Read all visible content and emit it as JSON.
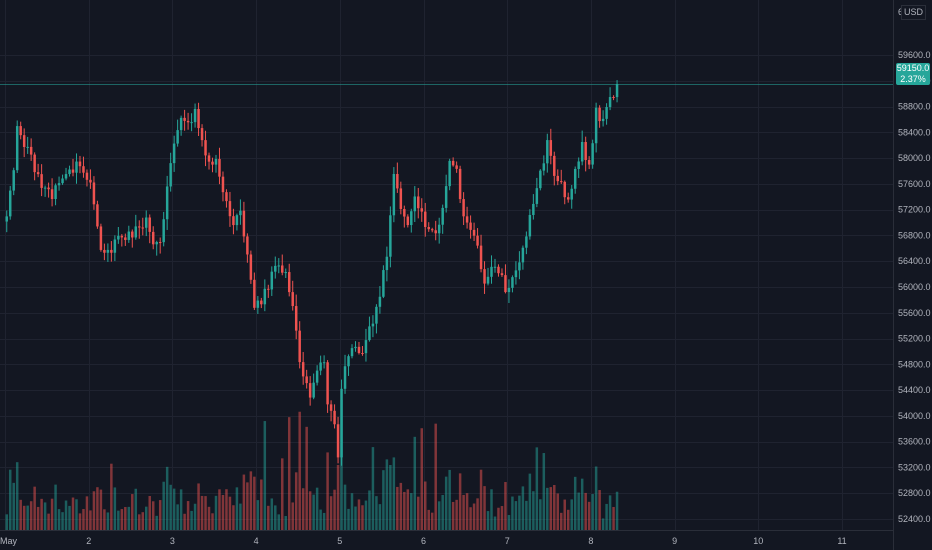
{
  "currency": "USD",
  "price_label": {
    "price": "59150.0",
    "change": "2.37%"
  },
  "colors": {
    "background": "#131722",
    "grid": "#1f2330",
    "up": "#26a69a",
    "down": "#ef5350",
    "axis_text": "#b2b5be",
    "last_price_line": "#26a69a"
  },
  "chart_data": {
    "type": "candlestick",
    "title": "",
    "xlabel": "",
    "ylabel": "",
    "ylim": [
      52200,
      60600
    ],
    "y_ticks": [
      52400,
      52800,
      53200,
      53600,
      54000,
      54400,
      54800,
      55200,
      55600,
      56000,
      56400,
      56800,
      57200,
      57600,
      58000,
      58400,
      58800,
      59200,
      59600
    ],
    "y_tick_labels": [
      "52400.0",
      "52800.0",
      "53200.0",
      "53600.0",
      "54000.0",
      "54400.0",
      "54800.0",
      "55200.0",
      "55600.0",
      "56000.0",
      "56400.0",
      "56800.0",
      "57200.0",
      "57600.0",
      "58000.0",
      "58400.0",
      "58800.0",
      "59200.0",
      "59600.0"
    ],
    "y_tick_partial": "60",
    "x_ticks": [
      {
        "day": 1,
        "label": "May"
      },
      {
        "day": 2,
        "label": "2"
      },
      {
        "day": 3,
        "label": "3"
      },
      {
        "day": 4,
        "label": "4"
      },
      {
        "day": 5,
        "label": "5"
      },
      {
        "day": 6,
        "label": "6"
      },
      {
        "day": 7,
        "label": "7"
      },
      {
        "day": 8,
        "label": "8"
      },
      {
        "day": 9,
        "label": "9"
      },
      {
        "day": 10,
        "label": "10"
      },
      {
        "day": 11,
        "label": "11"
      }
    ],
    "x_range_days": [
      1,
      11.5
    ],
    "bar_interval_hours": 1,
    "last_price": 59150,
    "grid": true,
    "waypoints": [
      [
        0,
        57100
      ],
      [
        2,
        57900
      ],
      [
        3,
        58500
      ],
      [
        6,
        58100
      ],
      [
        10,
        57600
      ],
      [
        13,
        57400
      ],
      [
        16,
        57700
      ],
      [
        20,
        57900
      ],
      [
        24,
        57600
      ],
      [
        27,
        56600
      ],
      [
        30,
        56500
      ],
      [
        32,
        56800
      ],
      [
        36,
        56800
      ],
      [
        40,
        57000
      ],
      [
        42,
        56600
      ],
      [
        44,
        56700
      ],
      [
        47,
        58000
      ],
      [
        50,
        58700
      ],
      [
        52,
        58500
      ],
      [
        54,
        58700
      ],
      [
        57,
        58100
      ],
      [
        60,
        57900
      ],
      [
        63,
        57300
      ],
      [
        65,
        57000
      ],
      [
        67,
        57100
      ],
      [
        70,
        56200
      ],
      [
        71,
        55700
      ],
      [
        73,
        55800
      ],
      [
        74,
        55900
      ],
      [
        76,
        56200
      ],
      [
        78,
        56400
      ],
      [
        80,
        56200
      ],
      [
        82,
        55700
      ],
      [
        84,
        54800
      ],
      [
        87,
        54300
      ],
      [
        89,
        54700
      ],
      [
        91,
        54900
      ],
      [
        92,
        54200
      ],
      [
        94,
        53800
      ],
      [
        95,
        53300
      ],
      [
        96,
        54500
      ],
      [
        98,
        55000
      ],
      [
        100,
        55100
      ],
      [
        102,
        55000
      ],
      [
        104,
        55300
      ],
      [
        107,
        55900
      ],
      [
        109,
        56500
      ],
      [
        111,
        57700
      ],
      [
        113,
        57200
      ],
      [
        115,
        57000
      ],
      [
        117,
        57400
      ],
      [
        120,
        57000
      ],
      [
        123,
        56900
      ],
      [
        125,
        57200
      ],
      [
        127,
        58000
      ],
      [
        129,
        57800
      ],
      [
        131,
        57100
      ],
      [
        133,
        56900
      ],
      [
        135,
        56600
      ],
      [
        137,
        56000
      ],
      [
        139,
        56400
      ],
      [
        141,
        56300
      ],
      [
        143,
        56000
      ],
      [
        145,
        56100
      ],
      [
        147,
        56300
      ],
      [
        149,
        56800
      ],
      [
        152,
        57500
      ],
      [
        155,
        58200
      ],
      [
        157,
        57700
      ],
      [
        159,
        57600
      ],
      [
        161,
        57300
      ],
      [
        163,
        57800
      ],
      [
        165,
        58200
      ],
      [
        167,
        57900
      ],
      [
        169,
        58700
      ],
      [
        171,
        58600
      ],
      [
        173,
        58900
      ],
      [
        175,
        59150
      ]
    ]
  }
}
